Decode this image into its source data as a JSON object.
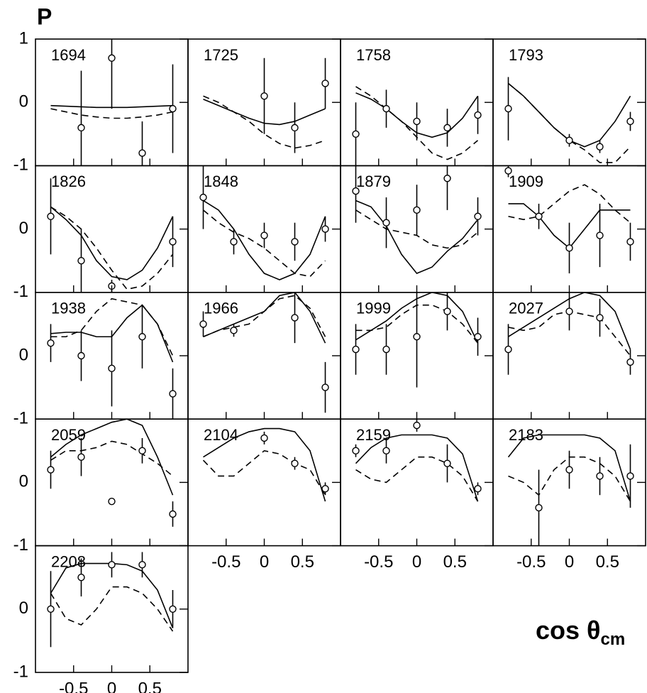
{
  "axis_labels": {
    "y": "P",
    "x": "cos θ",
    "x_sub": "cm"
  },
  "axes": {
    "xlim": [
      -1,
      1
    ],
    "ylim": [
      -1,
      1
    ],
    "xticks": [
      -0.5,
      0,
      0.5
    ],
    "yticks": [
      -1,
      0,
      1
    ]
  },
  "curve_x": [
    -0.8,
    -0.6,
    -0.4,
    -0.2,
    0,
    0.2,
    0.4,
    0.6,
    0.8
  ],
  "chart_data": [
    {
      "type": "line",
      "title": "1694",
      "x": [
        -0.4,
        0,
        0.4,
        0.8
      ],
      "values": [
        -0.4,
        0.7,
        -0.8,
        -0.1
      ],
      "errors": [
        0.9,
        0.8,
        0.5,
        0.7
      ],
      "solid": [
        -0.05,
        -0.06,
        -0.07,
        -0.08,
        -0.08,
        -0.08,
        -0.07,
        -0.06,
        -0.05
      ],
      "dashed": [
        -0.1,
        -0.15,
        -0.2,
        -0.23,
        -0.25,
        -0.25,
        -0.23,
        -0.2,
        -0.15
      ]
    },
    {
      "type": "line",
      "title": "1725",
      "x": [
        0,
        0.4,
        0.8
      ],
      "values": [
        0.1,
        -0.4,
        0.3
      ],
      "errors": [
        0.6,
        0.4,
        0.4
      ],
      "solid": [
        0.05,
        -0.05,
        -0.15,
        -0.25,
        -0.33,
        -0.35,
        -0.3,
        -0.2,
        -0.1
      ],
      "dashed": [
        0.1,
        0,
        -0.15,
        -0.3,
        -0.5,
        -0.65,
        -0.72,
        -0.68,
        -0.6
      ]
    },
    {
      "type": "line",
      "title": "1758",
      "x": [
        -0.8,
        -0.4,
        0,
        0.4,
        0.8
      ],
      "values": [
        -0.5,
        -0.1,
        -0.3,
        -0.4,
        -0.2
      ],
      "errors": [
        0.5,
        0.3,
        0.3,
        0.3,
        0.3
      ],
      "solid": [
        0.15,
        0.05,
        -0.1,
        -0.3,
        -0.48,
        -0.55,
        -0.48,
        -0.25,
        0.1
      ],
      "dashed": [
        0.25,
        0.1,
        -0.1,
        -0.3,
        -0.55,
        -0.8,
        -0.9,
        -0.8,
        -0.6
      ]
    },
    {
      "type": "line",
      "title": "1793",
      "x": [
        -0.8,
        0,
        0.4,
        0.8
      ],
      "values": [
        -0.1,
        -0.6,
        -0.7,
        -0.3
      ],
      "errors": [
        0.5,
        0.1,
        0.1,
        0.15
      ],
      "solid": [
        0.3,
        0.1,
        -0.15,
        -0.4,
        -0.6,
        -0.7,
        -0.6,
        -0.3,
        0.1
      ],
      "dashed": [
        0.3,
        0.1,
        -0.15,
        -0.4,
        -0.6,
        -0.75,
        -0.95,
        -0.95,
        -0.7
      ]
    },
    {
      "type": "line",
      "title": "1826",
      "x": [
        -0.8,
        -0.4,
        0,
        0.8
      ],
      "values": [
        0.2,
        -0.5,
        -0.9,
        -0.2
      ],
      "errors": [
        0.6,
        0.5,
        0.1,
        0.4
      ],
      "solid": [
        0.35,
        0.15,
        -0.1,
        -0.5,
        -0.75,
        -0.8,
        -0.65,
        -0.3,
        0.2
      ],
      "dashed": [
        0.35,
        0.2,
        0,
        -0.3,
        -0.65,
        -0.95,
        -0.9,
        -0.7,
        -0.4
      ]
    },
    {
      "type": "line",
      "title": "1848",
      "x": [
        -0.8,
        -0.4,
        0,
        0.4,
        0.8
      ],
      "values": [
        0.5,
        -0.2,
        -0.1,
        -0.2,
        0
      ],
      "errors": [
        0.5,
        0.2,
        0.2,
        0.3,
        0.2
      ],
      "solid": [
        0.45,
        0.3,
        0,
        -0.4,
        -0.7,
        -0.8,
        -0.7,
        -0.4,
        0.2
      ],
      "dashed": [
        0.3,
        0.1,
        -0.05,
        -0.15,
        -0.3,
        -0.5,
        -0.7,
        -0.75,
        -0.5
      ]
    },
    {
      "type": "line",
      "title": "1879",
      "x": [
        -0.8,
        -0.4,
        0,
        0.4,
        0.8
      ],
      "values": [
        0.6,
        0.1,
        0.3,
        0.8,
        0.2
      ],
      "errors": [
        0.5,
        0.4,
        0.4,
        0.5,
        0.3
      ],
      "solid": [
        0.45,
        0.35,
        0.05,
        -0.4,
        -0.7,
        -0.6,
        -0.35,
        -0.15,
        0.15
      ],
      "dashed": [
        0.3,
        0.15,
        0,
        -0.05,
        -0.1,
        -0.25,
        -0.3,
        -0.25,
        -0.05
      ]
    },
    {
      "type": "line",
      "title": "1909",
      "x": [
        -0.8,
        -0.4,
        0,
        0.4,
        0.8
      ],
      "values": [
        0.92,
        0.2,
        -0.3,
        -0.1,
        -0.2
      ],
      "errors": [
        0.1,
        0.2,
        0.4,
        0.5,
        0.3
      ],
      "solid": [
        0.4,
        0.4,
        0.2,
        -0.1,
        -0.3,
        0,
        0.3,
        0.3,
        0.3
      ],
      "dashed": [
        0.2,
        0.15,
        0.2,
        0.4,
        0.6,
        0.7,
        0.55,
        0.3,
        0.1
      ]
    },
    {
      "type": "line",
      "title": "1938",
      "x": [
        -0.8,
        -0.4,
        0,
        0.4,
        0.8
      ],
      "values": [
        0.2,
        0,
        -0.2,
        0.3,
        -0.6
      ],
      "errors": [
        0.3,
        0.4,
        0.6,
        0.5,
        0.4
      ],
      "solid": [
        0.35,
        0.37,
        0.37,
        0.3,
        0.3,
        0.6,
        0.8,
        0.5,
        -0.1
      ],
      "dashed": [
        0.3,
        0.3,
        0.4,
        0.7,
        0.9,
        0.85,
        0.8,
        0.5,
        0
      ]
    },
    {
      "type": "line",
      "title": "1966",
      "x": [
        -0.8,
        -0.4,
        0.4,
        0.8
      ],
      "values": [
        0.5,
        0.4,
        0.6,
        -0.5
      ],
      "errors": [
        0.2,
        0.1,
        0.4,
        0.4
      ],
      "solid": [
        0.3,
        0.4,
        0.5,
        0.6,
        0.7,
        0.95,
        1.0,
        0.7,
        0.2
      ],
      "dashed": [
        0.3,
        0.4,
        0.45,
        0.5,
        0.7,
        0.9,
        0.95,
        0.75,
        0.3
      ]
    },
    {
      "type": "line",
      "title": "1999",
      "x": [
        -0.8,
        -0.4,
        0,
        0.4,
        0.8
      ],
      "values": [
        0.1,
        0.1,
        0.3,
        0.7,
        0.3
      ],
      "errors": [
        0.4,
        0.4,
        0.8,
        0.3,
        0.3
      ],
      "solid": [
        0.25,
        0.4,
        0.55,
        0.75,
        0.9,
        1.0,
        0.95,
        0.7,
        0.2
      ],
      "dashed": [
        0.4,
        0.4,
        0.45,
        0.65,
        0.8,
        0.8,
        0.7,
        0.5,
        0.2
      ]
    },
    {
      "type": "line",
      "title": "2027",
      "x": [
        -0.8,
        0,
        0.4,
        0.8
      ],
      "values": [
        0.1,
        0.7,
        0.6,
        -0.1
      ],
      "errors": [
        0.4,
        0.3,
        0.3,
        0.2
      ],
      "solid": [
        0.3,
        0.45,
        0.6,
        0.75,
        0.9,
        1.0,
        0.95,
        0.7,
        0.1
      ],
      "dashed": [
        0.45,
        0.4,
        0.45,
        0.65,
        0.7,
        0.65,
        0.6,
        0.3,
        0
      ]
    },
    {
      "type": "line",
      "title": "2059",
      "x": [
        -0.8,
        -0.4,
        0,
        0.4,
        0.8
      ],
      "values": [
        0.2,
        0.4,
        -0.3,
        0.5,
        -0.5
      ],
      "errors": [
        0.3,
        0.3,
        0.05,
        0.2,
        0.2
      ],
      "solid": [
        0.4,
        0.6,
        0.75,
        0.85,
        0.95,
        1.0,
        0.9,
        0.4,
        -0.2
      ],
      "dashed": [
        0.35,
        0.5,
        0.5,
        0.55,
        0.65,
        0.6,
        0.45,
        0.3,
        0.1
      ]
    },
    {
      "type": "line",
      "title": "2104",
      "x": [
        0,
        0.4,
        0.8
      ],
      "values": [
        0.7,
        0.3,
        -0.1
      ],
      "errors": [
        0.1,
        0.1,
        0.1
      ],
      "solid": [
        0.4,
        0.55,
        0.7,
        0.8,
        0.85,
        0.85,
        0.8,
        0.5,
        -0.3
      ],
      "dashed": [
        0.35,
        0.1,
        0.1,
        0.3,
        0.5,
        0.45,
        0.3,
        0.2,
        -0.2
      ]
    },
    {
      "type": "line",
      "title": "2159",
      "x": [
        -0.8,
        -0.4,
        0,
        0.4,
        0.8
      ],
      "values": [
        0.5,
        0.5,
        0.9,
        0.3,
        -0.1
      ],
      "errors": [
        0.1,
        0.2,
        0.1,
        0.3,
        0.1
      ],
      "solid": [
        0.3,
        0.55,
        0.7,
        0.75,
        0.75,
        0.75,
        0.7,
        0.45,
        -0.3
      ],
      "dashed": [
        0.2,
        0.05,
        0,
        0.2,
        0.4,
        0.4,
        0.3,
        0.1,
        -0.3
      ]
    },
    {
      "type": "line",
      "title": "2183",
      "x": [
        -0.4,
        0,
        0.4,
        0.8
      ],
      "values": [
        -0.4,
        0.2,
        0.1,
        0.1
      ],
      "errors": [
        0.6,
        0.3,
        0.3,
        0.5
      ],
      "solid": [
        0.4,
        0.7,
        0.75,
        0.75,
        0.75,
        0.75,
        0.7,
        0.5,
        -0.3
      ],
      "dashed": [
        0.1,
        0,
        -0.2,
        0.2,
        0.4,
        0.4,
        0.3,
        0.1,
        -0.3
      ]
    },
    {
      "type": "line",
      "title": "2208",
      "x": [
        -0.8,
        -0.4,
        0,
        0.4,
        0.8
      ],
      "values": [
        0,
        0.5,
        0.7,
        0.7,
        0
      ],
      "errors": [
        0.6,
        0.3,
        0.2,
        0.2,
        0.3
      ],
      "solid": [
        0.25,
        0.65,
        0.72,
        0.72,
        0.72,
        0.7,
        0.6,
        0.3,
        -0.3
      ],
      "dashed": [
        0.25,
        -0.15,
        -0.25,
        0,
        0.35,
        0.35,
        0.25,
        0,
        -0.35
      ]
    }
  ]
}
